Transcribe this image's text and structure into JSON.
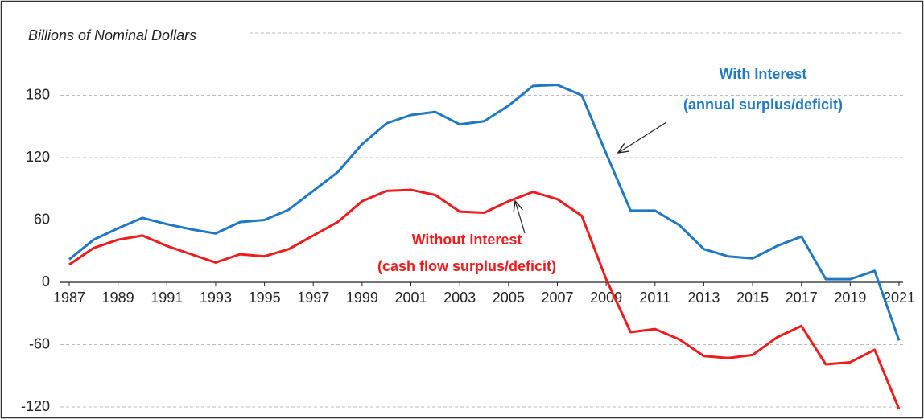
{
  "chart_data": {
    "type": "line",
    "y_label": "Billions of Nominal Dollars",
    "x": [
      1987,
      1988,
      1989,
      1990,
      1991,
      1992,
      1993,
      1994,
      1995,
      1996,
      1997,
      1998,
      1999,
      2000,
      2001,
      2002,
      2003,
      2004,
      2005,
      2006,
      2007,
      2008,
      2009,
      2010,
      2011,
      2012,
      2013,
      2014,
      2015,
      2016,
      2017,
      2018,
      2019,
      2020,
      2021
    ],
    "series": [
      {
        "name": "With Interest",
        "color": "#1f78c1",
        "values": [
          22,
          41,
          52,
          62,
          56,
          51,
          47,
          58,
          60,
          70,
          88,
          106,
          133,
          153,
          161,
          164,
          152,
          155,
          170,
          189,
          190,
          180,
          124,
          69,
          69,
          55,
          32,
          25,
          23,
          35,
          44,
          3,
          3,
          11,
          -56
        ]
      },
      {
        "name": "Without Interest",
        "color": "#ee1c1c",
        "values": [
          17,
          33,
          41,
          45,
          35,
          27,
          19,
          27,
          25,
          32,
          45,
          58,
          78,
          88,
          89,
          84,
          68,
          67,
          78,
          87,
          80,
          64,
          3,
          -48,
          -45,
          -55,
          -71,
          -73,
          -70,
          -53,
          -42,
          -79,
          -77,
          -65,
          -122
        ]
      }
    ],
    "annotations": [
      "With Interest",
      "(annual surplus/deficit)",
      "Without Interest",
      "(cash flow surplus/deficit)"
    ],
    "xlim": [
      1987,
      2021
    ],
    "xticks": [
      1987,
      1989,
      1991,
      1993,
      1995,
      1997,
      1999,
      2001,
      2003,
      2005,
      2007,
      2009,
      2011,
      2013,
      2015,
      2017,
      2019,
      2021
    ],
    "ylim": [
      -120,
      240
    ],
    "yticks": [
      -120,
      -60,
      0,
      60,
      120,
      180
    ],
    "grid": true
  }
}
